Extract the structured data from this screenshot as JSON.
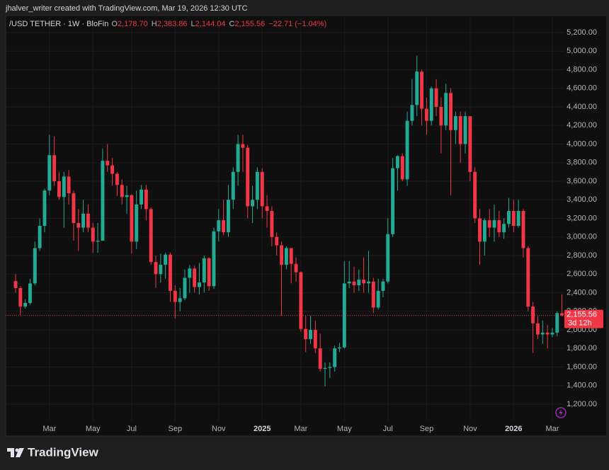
{
  "page": {
    "attribution": "jhalver_writer created with TradingView.com, Mar 19, 2026 12:30 UTC",
    "brand": "TradingView"
  },
  "chart_data": {
    "type": "candlestick",
    "title": "/USD TETHER · 1W · BloFin",
    "legend": [
      {
        "key": "O",
        "value": "2,178.70"
      },
      {
        "key": "H",
        "value": "2,383.86"
      },
      {
        "key": "L",
        "value": "2,144.04"
      },
      {
        "key": "C",
        "value": "2,155.56"
      }
    ],
    "change": "−22.71 (−1.04%)",
    "up_color": "#22ab94",
    "down_color": "#f23645",
    "categories": [
      null,
      null,
      null,
      null,
      null,
      null,
      null,
      "Mar",
      null,
      null,
      null,
      null,
      null,
      null,
      null,
      null,
      "May",
      null,
      null,
      null,
      null,
      null,
      null,
      null,
      "Jul",
      null,
      null,
      null,
      null,
      null,
      null,
      null,
      null,
      "Sep",
      null,
      null,
      null,
      null,
      null,
      null,
      null,
      null,
      "Nov",
      null,
      null,
      null,
      null,
      null,
      null,
      null,
      null,
      "2025",
      null,
      null,
      null,
      null,
      null,
      null,
      null,
      "Mar",
      null,
      null,
      null,
      null,
      null,
      null,
      null,
      null,
      "May",
      null,
      null,
      null,
      null,
      null,
      null,
      null,
      null,
      "Jul",
      null,
      null,
      null,
      null,
      null,
      null,
      null,
      "Sep",
      null,
      null,
      null,
      null,
      null,
      null,
      null,
      null,
      "Nov",
      null,
      null,
      null,
      null,
      null,
      null,
      null,
      null,
      "2026",
      null,
      null,
      null,
      null,
      null,
      null,
      null,
      "Mar",
      null,
      null
    ],
    "open": [
      2525,
      2450,
      2250,
      2290,
      2500,
      2880,
      3120,
      3500,
      3880,
      3600,
      3430,
      3650,
      3470,
      3150,
      3100,
      3250,
      3100,
      2950,
      2960,
      3820,
      3770,
      3680,
      3560,
      3430,
      3450,
      2950,
      3350,
      3510,
      3300,
      2730,
      2600,
      2700,
      2810,
      2420,
      2300,
      2340,
      2560,
      2660,
      2460,
      2510,
      2770,
      2470,
      3060,
      3180,
      3050,
      3400,
      3700,
      4000,
      3960,
      3330,
      3400,
      3700,
      3330,
      3280,
      3000,
      2910,
      2700,
      2880,
      2710,
      2620,
      2010,
      1900,
      2000,
      1800,
      1580,
      1590,
      1600,
      1800,
      1810,
      2500,
      2520,
      2480,
      2540,
      2500,
      2520,
      2240,
      2420,
      2520,
      3030,
      3740,
      3870,
      3620,
      4250,
      4420,
      4780,
      4380,
      4250,
      4600,
      4400,
      4200,
      4550,
      4150,
      4300,
      4000,
      4300,
      3700,
      3200,
      2950,
      3180,
      3100,
      3180,
      3050,
      3140,
      3280,
      3120,
      3280,
      2880,
      2250,
      2070,
      1950,
      1970,
      1950,
      1970,
      2178.7
    ],
    "high": [
      2600,
      2470,
      2330,
      2550,
      2950,
      3200,
      3520,
      4100,
      4080,
      3700,
      3700,
      3720,
      3500,
      3300,
      3400,
      3350,
      3150,
      3150,
      3950,
      4000,
      3850,
      3700,
      3620,
      3550,
      3460,
      3500,
      3560,
      3560,
      3320,
      2800,
      2820,
      2830,
      2830,
      2480,
      2450,
      2650,
      2700,
      2690,
      2720,
      2800,
      2780,
      3100,
      3300,
      3400,
      3560,
      3750,
      4100,
      4100,
      3990,
      3550,
      3750,
      3740,
      3450,
      3330,
      3050,
      2950,
      2900,
      2880,
      2780,
      2630,
      2150,
      2150,
      2100,
      1960,
      1650,
      1650,
      1830,
      1860,
      2740,
      2740,
      2680,
      2650,
      2780,
      2850,
      2560,
      2550,
      2550,
      3200,
      3850,
      3880,
      3900,
      4350,
      4700,
      4950,
      4800,
      4500,
      4620,
      4700,
      4500,
      4650,
      4600,
      4350,
      4350,
      4350,
      4300,
      3750,
      3300,
      3200,
      3300,
      3350,
      3280,
      3200,
      3420,
      3400,
      3400,
      3300,
      2900,
      2300,
      2150,
      2100,
      2050,
      2020,
      2200,
      2383.86
    ],
    "low": [
      2400,
      2160,
      2230,
      2270,
      2480,
      2850,
      3050,
      3450,
      3550,
      3400,
      3100,
      3350,
      2960,
      2850,
      3050,
      3050,
      2830,
      2830,
      2960,
      3700,
      3550,
      3440,
      3350,
      3250,
      2820,
      2870,
      3300,
      3180,
      2700,
      2450,
      2510,
      2550,
      2300,
      2120,
      2200,
      2320,
      2400,
      2400,
      2380,
      2400,
      2420,
      2440,
      2950,
      3020,
      3000,
      3300,
      3550,
      3700,
      3200,
      3150,
      3300,
      3200,
      3100,
      2900,
      2800,
      2150,
      2650,
      2500,
      2520,
      1980,
      1760,
      1850,
      1750,
      1550,
      1390,
      1480,
      1550,
      1760,
      1800,
      2450,
      2400,
      2420,
      2400,
      2400,
      2180,
      2220,
      2350,
      2500,
      3000,
      3500,
      3600,
      3550,
      4200,
      4300,
      4200,
      4100,
      4200,
      4300,
      3900,
      4150,
      3450,
      4000,
      3800,
      3900,
      3600,
      3150,
      2700,
      2800,
      3000,
      2950,
      3000,
      2980,
      3100,
      3050,
      3100,
      2780,
      2200,
      1750,
      1900,
      1850,
      1800,
      1920,
      1930,
      2144.04
    ],
    "close": [
      2450,
      2250,
      2290,
      2500,
      2880,
      3120,
      3500,
      3880,
      3600,
      3430,
      3650,
      3470,
      3150,
      3100,
      3250,
      3100,
      2950,
      2960,
      3820,
      3770,
      3680,
      3560,
      3430,
      3450,
      2950,
      3350,
      3510,
      3300,
      2730,
      2600,
      2700,
      2810,
      2420,
      2300,
      2340,
      2560,
      2660,
      2460,
      2510,
      2770,
      2470,
      3060,
      3180,
      3050,
      3400,
      3700,
      4000,
      3960,
      3330,
      3400,
      3700,
      3330,
      3280,
      3000,
      2910,
      2700,
      2880,
      2710,
      2620,
      2010,
      1900,
      2000,
      1800,
      1580,
      1590,
      1600,
      1800,
      1810,
      2500,
      2520,
      2480,
      2540,
      2500,
      2520,
      2240,
      2420,
      2520,
      3030,
      3740,
      3870,
      3620,
      4250,
      4420,
      4780,
      4380,
      4250,
      4600,
      4400,
      4200,
      4550,
      4150,
      4300,
      4000,
      4300,
      3700,
      3200,
      2950,
      3180,
      3100,
      3180,
      3050,
      3140,
      3280,
      3120,
      3280,
      2880,
      2250,
      2070,
      1950,
      1970,
      1950,
      1970,
      2180,
      2155.56
    ],
    "ylim": [
      1017,
      5383
    ],
    "yticks": [
      {
        "value": 1200,
        "label": "1,200.00"
      },
      {
        "value": 1400,
        "label": "1,400.00"
      },
      {
        "value": 1600,
        "label": "1,600.00"
      },
      {
        "value": 1800,
        "label": "1,800.00"
      },
      {
        "value": 2000,
        "label": "2,000.00"
      },
      {
        "value": 2200,
        "label": "2,200.00"
      },
      {
        "value": 2400,
        "label": "2,400.00"
      },
      {
        "value": 2600,
        "label": "2,600.00"
      },
      {
        "value": 2800,
        "label": "2,800.00"
      },
      {
        "value": 3000,
        "label": "3,000.00"
      },
      {
        "value": 3200,
        "label": "3,200.00"
      },
      {
        "value": 3400,
        "label": "3,400.00"
      },
      {
        "value": 3600,
        "label": "3,600.00"
      },
      {
        "value": 3800,
        "label": "3,800.00"
      },
      {
        "value": 4000,
        "label": "4,000.00"
      },
      {
        "value": 4200,
        "label": "4,200.00"
      },
      {
        "value": 4400,
        "label": "4,400.00"
      },
      {
        "value": 4600,
        "label": "4,600.00"
      },
      {
        "value": 4800,
        "label": "4,800.00"
      },
      {
        "value": 5000,
        "label": "5,000.00"
      },
      {
        "value": 5200,
        "label": "5,200.00"
      }
    ],
    "grid": true,
    "last_price": {
      "value": 2155.56,
      "label": "2,155.56"
    },
    "countdown": "3d 12h"
  }
}
